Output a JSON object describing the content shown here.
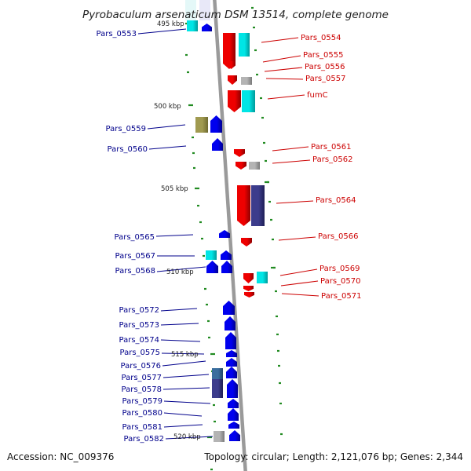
{
  "title": "Pyrobaculum arsenaticum DSM 13514, complete genome",
  "accession": "Accession: NC_009376",
  "topology": "Topology: circular; Length: 2,121,076 bp; Genes: 2,344",
  "colors": {
    "forward_label": "#00008b",
    "reverse_label": "#cc0000",
    "backbone": "#999999",
    "tick": "#228b22",
    "cds_forward": "#0000ee",
    "cds_reverse": "#ee0000",
    "cog_cyan": "#00e5e5",
    "cog_navy": "#3c3c8c",
    "cog_olive": "#a09a50",
    "cog_steel": "#3a6e9e",
    "gray": "#b4b4b4"
  },
  "scale_labels": [
    "495 kbp",
    "500 kbp",
    "505 kbp",
    "510 kbp",
    "515 kbp",
    "520 kbp"
  ],
  "forward_genes": [
    "Pars_0553",
    "Pars_0559",
    "Pars_0560",
    "Pars_0565",
    "Pars_0567",
    "Pars_0568",
    "Pars_0572",
    "Pars_0573",
    "Pars_0574",
    "Pars_0575",
    "Pars_0576",
    "Pars_0577",
    "Pars_0578",
    "Pars_0579",
    "Pars_0580",
    "Pars_0581",
    "Pars_0582"
  ],
  "reverse_genes": [
    "Pars_0554",
    "Pars_0555",
    "Pars_0556",
    "Pars_0557",
    "fumC",
    "Pars_0561",
    "Pars_0562",
    "Pars_0564",
    "Pars_0566",
    "Pars_0569",
    "Pars_0570",
    "Pars_0571"
  ]
}
